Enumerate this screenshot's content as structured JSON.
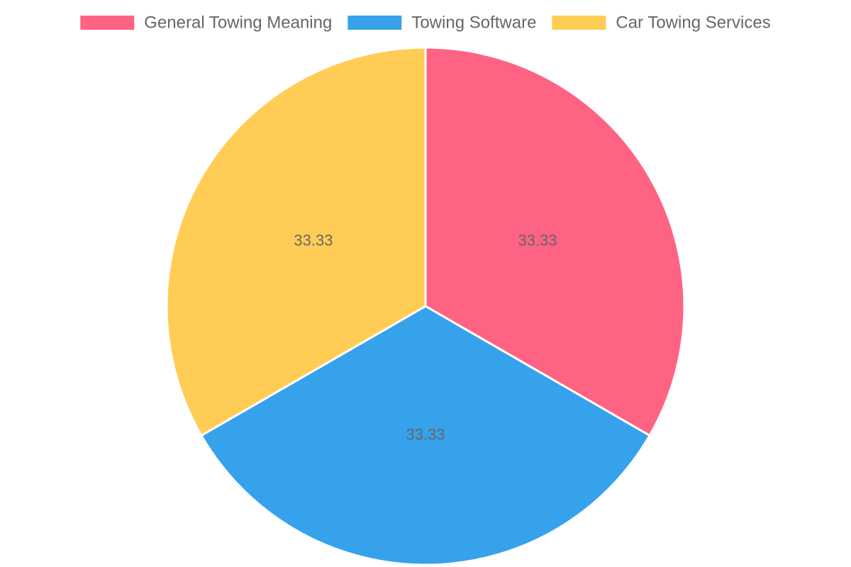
{
  "chart_data": {
    "type": "pie",
    "categories": [
      "General Towing Meaning",
      "Towing Software",
      "Car Towing Services"
    ],
    "values": [
      33.33,
      33.33,
      33.33
    ],
    "colors": [
      "#ff6384",
      "#36a2eb",
      "#ffcd56"
    ],
    "legend": "top"
  }
}
